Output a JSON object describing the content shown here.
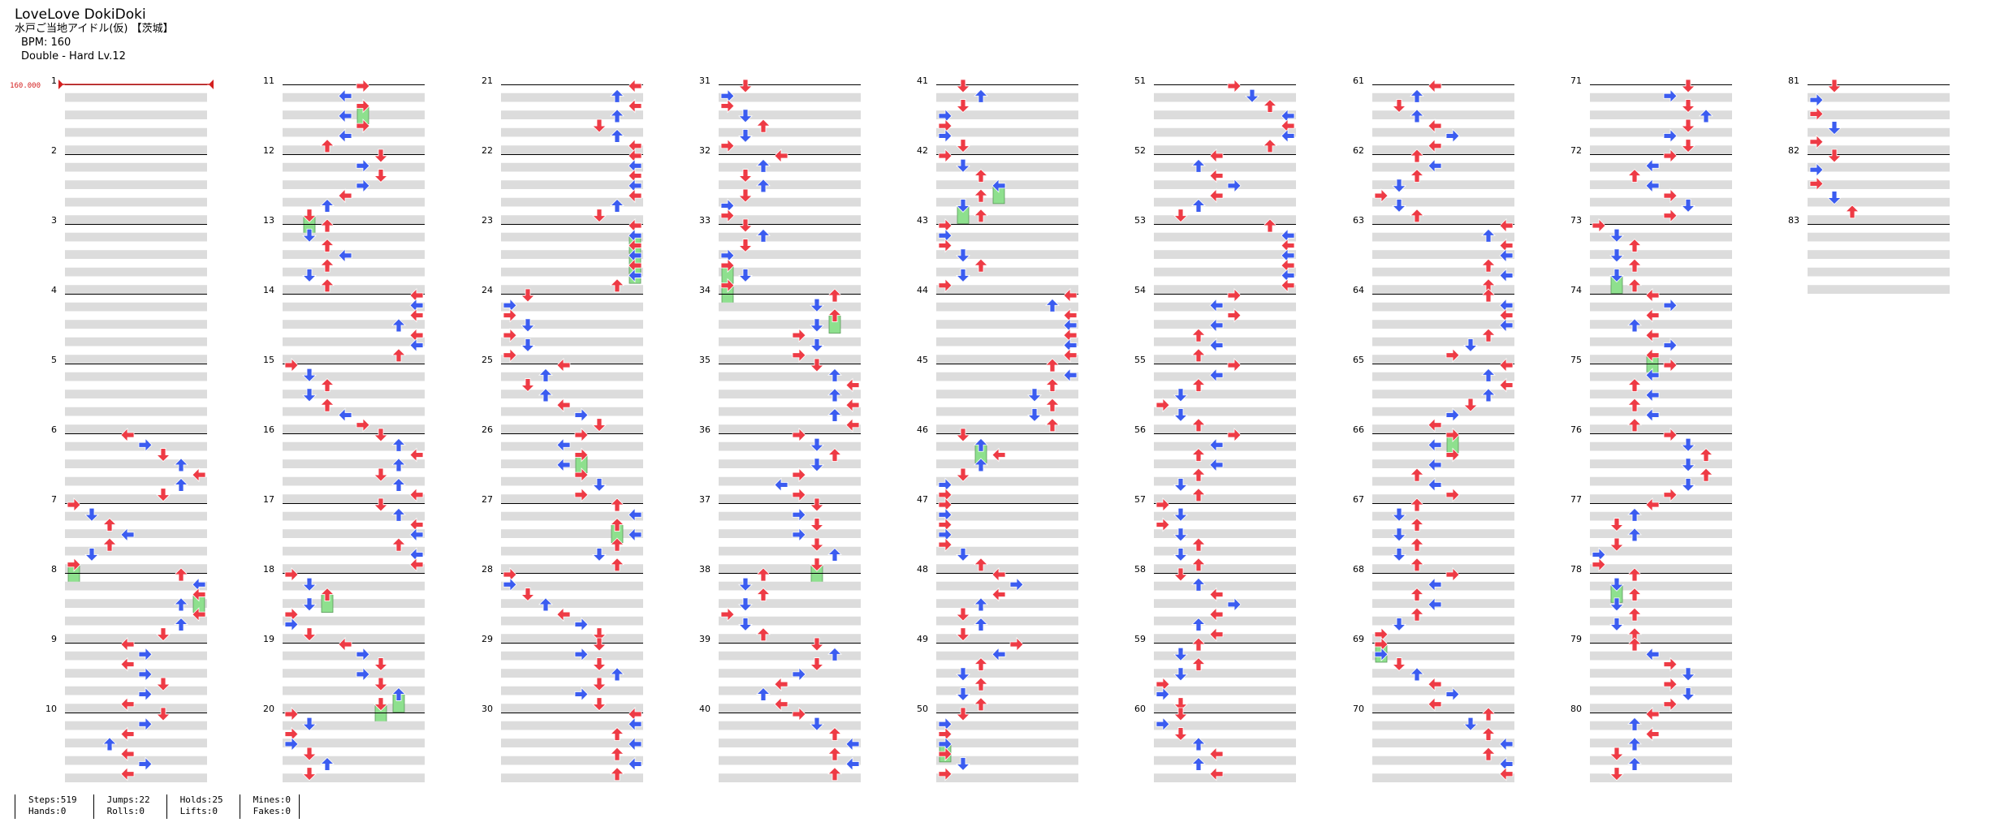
{
  "header": {
    "title": "LoveLove DokiDoki",
    "subtitle": "水戸ご当地アイドル(仮) 【茨城】",
    "bpm_text": "BPM: 160",
    "chart_text": "Double - Hard  Lv.12"
  },
  "bpm_marker": "160.000",
  "measure_labels": [
    "1",
    "2",
    "3",
    "4",
    "5",
    "6",
    "7",
    "8",
    "9",
    "10",
    "11",
    "12",
    "13",
    "14",
    "15",
    "16",
    "17",
    "18",
    "19",
    "20",
    "21",
    "22",
    "23",
    "24",
    "25",
    "26",
    "27",
    "28",
    "29",
    "30",
    "31",
    "32",
    "33",
    "34",
    "35",
    "36",
    "37",
    "38",
    "39",
    "40",
    "41",
    "42",
    "43",
    "44",
    "45",
    "46",
    "47",
    "48",
    "49",
    "50",
    "51",
    "52",
    "53",
    "54",
    "55",
    "56",
    "57",
    "58",
    "59",
    "60",
    "61",
    "62",
    "63",
    "64",
    "65",
    "66",
    "67",
    "68",
    "69",
    "70",
    "71",
    "72",
    "73",
    "74",
    "75",
    "76",
    "77",
    "78",
    "79",
    "80",
    "81",
    "82",
    "83"
  ],
  "colors": {
    "quarter": "#ee3b45",
    "eighth": "#3b5cf0",
    "hold": "#8ee08e",
    "mine": "#f5d94a",
    "stripe": "#dcdcdc",
    "bpm": "#d42020"
  },
  "stats": [
    {
      "top": "Steps:519",
      "bottom": "Hands:0"
    },
    {
      "top": "Jumps:22",
      "bottom": "Rolls:0"
    },
    {
      "top": "Holds:25",
      "bottom": "Lifts:0"
    },
    {
      "top": "Mines:0",
      "bottom": "Fakes:0"
    }
  ]
}
